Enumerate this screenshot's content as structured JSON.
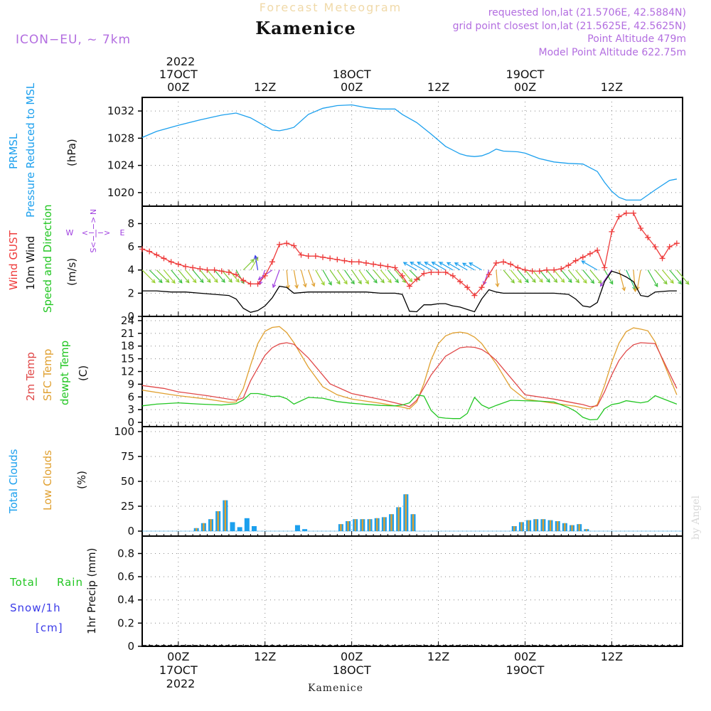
{
  "header": {
    "forecast_title": "Forecast Meteogram",
    "location": "Kamenice",
    "model": "ICON−EU, ~ 7km",
    "requested": "requested lon,lat (21.5706E, 42.5884N)",
    "gridpoint": "grid point closest lon,lat (21.5625E, 42.5625N)",
    "point_alt": "Point Altitude 479m",
    "model_alt": "Model Point Altitude 622.75m"
  },
  "footer": {
    "location": "Kamenice",
    "watermark": "by Angel"
  },
  "time_axis": {
    "top_year": "2022",
    "bottom_year": "2022",
    "labels": [
      {
        "h": 0,
        "top": "00Z",
        "date": "17OCT"
      },
      {
        "h": 12,
        "top": "12Z",
        "date": ""
      },
      {
        "h": 24,
        "top": "00Z",
        "date": "18OCT"
      },
      {
        "h": 36,
        "top": "12Z",
        "date": ""
      },
      {
        "h": 48,
        "top": "00Z",
        "date": "19OCT"
      },
      {
        "h": 60,
        "top": "12Z",
        "date": ""
      }
    ]
  },
  "colors": {
    "pressure": "#1ca0ee",
    "gust": "#ee3a3a",
    "wind": "#000000",
    "t2m": "#e04848",
    "sfc": "#e0a030",
    "dewpt": "#22c622",
    "total_clouds": "#1ca0ee",
    "low_clouds": "#e0a030",
    "rain": "#22c622",
    "snow": "#3a3ae8",
    "direction": "#a040e0"
  },
  "panels": {
    "pressure": {
      "label_line1": "PRMSL",
      "label_line2": "Pressure Reduced to MSL",
      "unit": "(hPa)",
      "ticks": [
        "1020",
        "1024",
        "1028",
        "1032"
      ]
    },
    "wind": {
      "label_gust": "Wind GUST",
      "label_wind": "10m Wind",
      "label_dir": "Speed and Direction",
      "unit": "(m/s)",
      "ticks": [
        "0",
        "2",
        "4",
        "6",
        "8"
      ],
      "compass": {
        "n": "N",
        "s": "S",
        "w": "W",
        "e": "E",
        "arrows": "<−|−>"
      }
    },
    "temp": {
      "label_t2m": "2m Temp",
      "label_sfc": "SFC Temp",
      "label_dewpt": "dewpt Temp",
      "unit": "(C)",
      "ticks": [
        "0",
        "3",
        "6",
        "9",
        "12",
        "15",
        "18",
        "21",
        "24"
      ]
    },
    "clouds": {
      "label_total": "Total Clouds",
      "label_low": "Low Clouds",
      "unit": "(%)",
      "ticks": [
        "0",
        "25",
        "50",
        "75",
        "100"
      ]
    },
    "precip": {
      "label_rain1": "Total",
      "label_rain2": "Rain",
      "label_snow1": "Snow/1h",
      "label_snow2": "[cm]",
      "ylabel": "1hr Precip (mm)",
      "ticks": [
        "0",
        "0.2",
        "0.4",
        "0.6",
        "0.8"
      ]
    }
  },
  "chart_data": {
    "type": "line",
    "x_units": "hours since 17OCT2022 00Z",
    "pressure": {
      "name": "PRMSL",
      "ylim": [
        1018,
        1034
      ],
      "x": [
        -5,
        -3,
        0,
        3,
        6,
        8,
        10,
        12,
        13,
        14,
        15,
        16,
        18,
        20,
        22,
        24,
        26,
        28,
        30,
        31,
        33,
        35,
        37,
        39,
        40,
        41,
        42,
        43,
        44,
        45,
        47,
        48,
        50,
        52,
        54,
        56,
        58,
        59,
        60,
        61,
        62,
        64,
        66,
        68,
        69
      ],
      "y": [
        1028.1,
        1029.0,
        1029.9,
        1030.7,
        1031.4,
        1031.7,
        1031.0,
        1029.8,
        1029.2,
        1029.1,
        1029.3,
        1029.6,
        1031.5,
        1032.4,
        1032.8,
        1032.9,
        1032.5,
        1032.3,
        1032.3,
        1031.5,
        1030.3,
        1028.6,
        1026.8,
        1025.7,
        1025.4,
        1025.3,
        1025.4,
        1025.8,
        1026.4,
        1026.1,
        1026.0,
        1025.8,
        1025.0,
        1024.5,
        1024.3,
        1024.2,
        1023.1,
        1021.5,
        1020.2,
        1019.3,
        1018.9,
        1018.9,
        1020.4,
        1021.8,
        1022.0
      ]
    },
    "gust": {
      "name": "Wind GUST",
      "ylim": [
        0,
        9.5
      ],
      "x": [
        -5,
        -4,
        -3,
        -2,
        -1,
        0,
        1,
        2,
        3,
        4,
        5,
        6,
        7,
        8,
        9,
        10,
        11,
        12,
        13,
        14,
        15,
        16,
        17,
        18,
        19,
        20,
        21,
        22,
        23,
        24,
        25,
        26,
        27,
        28,
        29,
        30,
        31,
        32,
        33,
        34,
        35,
        36,
        37,
        38,
        39,
        40,
        41,
        42,
        43,
        44,
        45,
        46,
        47,
        48,
        49,
        50,
        51,
        52,
        53,
        54,
        55,
        56,
        57,
        58,
        59,
        60,
        61,
        62,
        63,
        64,
        65,
        66,
        67,
        68,
        69
      ],
      "y": [
        5.8,
        5.6,
        5.3,
        5.0,
        4.7,
        4.5,
        4.3,
        4.2,
        4.1,
        4.0,
        4.0,
        3.9,
        3.8,
        3.6,
        3.1,
        2.8,
        2.8,
        3.5,
        4.7,
        6.2,
        6.3,
        6.1,
        5.3,
        5.2,
        5.2,
        5.1,
        5.0,
        4.9,
        4.8,
        4.7,
        4.7,
        4.6,
        4.5,
        4.4,
        4.3,
        4.2,
        3.5,
        2.6,
        3.2,
        3.7,
        3.8,
        3.8,
        3.8,
        3.5,
        3.0,
        2.5,
        1.8,
        2.5,
        3.6,
        4.6,
        4.7,
        4.5,
        4.2,
        4.0,
        3.9,
        3.9,
        4.0,
        4.0,
        4.1,
        4.4,
        4.8,
        5.1,
        5.4,
        5.7,
        4.2,
        7.3,
        8.6,
        8.9,
        8.9,
        7.6,
        6.8,
        6.0,
        5.0,
        6.0,
        6.3
      ]
    },
    "wind": {
      "name": "10m Wind",
      "ylim": [
        0,
        9.5
      ],
      "x": [
        -5,
        -3,
        -1,
        1,
        3,
        5,
        7,
        8,
        9,
        10,
        11,
        12,
        13,
        14,
        15,
        16,
        18,
        20,
        22,
        24,
        26,
        28,
        30,
        31,
        32,
        33,
        34,
        35,
        36,
        37,
        38,
        39,
        40,
        41,
        42,
        43,
        44,
        45,
        46,
        48,
        50,
        52,
        54,
        55,
        56,
        57,
        58,
        59,
        60,
        61,
        62,
        63,
        64,
        65,
        66,
        68,
        69
      ],
      "y": [
        2.2,
        2.2,
        2.1,
        2.1,
        2.0,
        1.9,
        1.8,
        1.5,
        0.7,
        0.35,
        0.5,
        0.9,
        1.6,
        2.6,
        2.5,
        2.0,
        2.1,
        2.1,
        2.1,
        2.1,
        2.1,
        2.0,
        2.0,
        1.9,
        0.45,
        0.4,
        1.0,
        1.0,
        1.1,
        1.1,
        0.9,
        0.8,
        0.6,
        0.4,
        1.5,
        2.3,
        2.1,
        2.0,
        2.0,
        2.0,
        2.0,
        2.0,
        1.9,
        1.5,
        0.9,
        0.8,
        1.2,
        3.0,
        3.9,
        3.7,
        3.4,
        3.0,
        1.8,
        1.7,
        2.1,
        2.2,
        2.2
      ]
    },
    "temp_2m": {
      "name": "2m Temp",
      "ylim": [
        -1,
        25
      ],
      "x": [
        -5,
        -2,
        0,
        4,
        8,
        9,
        10,
        12,
        13,
        14,
        15,
        16,
        18,
        21,
        24,
        28,
        31,
        32,
        33,
        35,
        37,
        39,
        40,
        41,
        42,
        43,
        44,
        48,
        52,
        55,
        56,
        57,
        58,
        59,
        60,
        61,
        62,
        63,
        64,
        66,
        69
      ],
      "y": [
        8.7,
        8.0,
        7.2,
        6.3,
        5.2,
        5.8,
        9.8,
        15.8,
        17.6,
        18.5,
        18.8,
        18.4,
        15.2,
        9.1,
        6.8,
        5.4,
        4.2,
        3.7,
        5.2,
        11.2,
        15.6,
        17.6,
        17.8,
        17.7,
        17.2,
        16.1,
        14.6,
        6.5,
        5.5,
        4.5,
        4.2,
        3.7,
        3.9,
        7.2,
        11.2,
        14.6,
        16.8,
        18.3,
        18.8,
        18.6,
        8.0
      ]
    },
    "temp_sfc": {
      "name": "SFC Temp",
      "ylim": [
        -1,
        25
      ],
      "x": [
        -5,
        -2,
        0,
        4,
        7,
        8,
        9,
        10,
        11,
        12,
        13,
        14,
        15,
        16,
        18,
        20,
        22,
        24,
        28,
        31,
        32,
        33,
        34,
        35,
        36,
        37,
        38,
        39,
        40,
        41,
        42,
        43,
        44,
        46,
        48,
        52,
        55,
        56,
        57,
        58,
        59,
        60,
        61,
        62,
        63,
        64,
        65,
        66,
        69
      ],
      "y": [
        7.6,
        6.8,
        6.3,
        5.5,
        4.7,
        4.8,
        8.0,
        13.5,
        18.6,
        21.5,
        22.4,
        22.6,
        21.2,
        18.8,
        13.0,
        8.4,
        6.5,
        5.5,
        4.5,
        3.6,
        3.2,
        4.8,
        9.2,
        14.8,
        18.6,
        20.4,
        21.1,
        21.3,
        21.0,
        20.1,
        18.6,
        16.2,
        13.8,
        8.2,
        5.5,
        4.5,
        3.8,
        3.4,
        3.2,
        4.2,
        8.7,
        14.2,
        18.7,
        21.4,
        22.3,
        22.0,
        21.6,
        19.0,
        6.5
      ]
    },
    "dewpt": {
      "name": "dewpt Temp",
      "ylim": [
        -1,
        25
      ],
      "x": [
        -5,
        -3,
        0,
        3,
        6,
        8,
        9,
        10,
        11,
        12,
        13,
        14,
        15,
        16,
        18,
        20,
        22,
        24,
        28,
        30,
        31,
        32,
        33,
        34,
        35,
        36,
        37,
        38,
        39,
        40,
        41,
        42,
        43,
        44,
        46,
        48,
        50,
        52,
        54,
        55,
        56,
        57,
        58,
        59,
        60,
        61,
        62,
        64,
        65,
        66,
        69
      ],
      "y": [
        3.9,
        4.3,
        4.6,
        4.3,
        4.1,
        4.4,
        5.3,
        6.8,
        6.8,
        6.5,
        6.1,
        6.2,
        5.6,
        4.3,
        5.9,
        5.7,
        4.9,
        4.5,
        4.0,
        3.9,
        4.1,
        4.6,
        6.5,
        6.2,
        2.8,
        1.2,
        1.0,
        0.9,
        0.9,
        2.1,
        5.9,
        4.1,
        3.3,
        4.0,
        5.2,
        5.1,
        5.0,
        4.8,
        3.5,
        2.6,
        1.2,
        0.6,
        0.7,
        3.2,
        4.2,
        4.5,
        5.1,
        4.6,
        4.9,
        6.3,
        4.3
      ]
    },
    "clouds": {
      "name": "Total Clouds",
      "ylim": [
        -5,
        105
      ],
      "hours": [
        0,
        1,
        2,
        3,
        4,
        5,
        6,
        7,
        8,
        9,
        10,
        11,
        12,
        13,
        14,
        15,
        16,
        17,
        18,
        19,
        20,
        21,
        22,
        23,
        24,
        25,
        26,
        27,
        28,
        29,
        30,
        31,
        32,
        33,
        34,
        35,
        36,
        37,
        38,
        39,
        40,
        41,
        42,
        43,
        44,
        45,
        46,
        47,
        48,
        49,
        50,
        51,
        52,
        53,
        54,
        55,
        56,
        57,
        58,
        59,
        60,
        61,
        62,
        63,
        64,
        65,
        66,
        67,
        68,
        69
      ],
      "total": [
        0,
        0,
        3,
        8,
        12,
        20,
        31,
        9,
        4,
        13,
        5,
        0,
        0,
        0,
        0,
        0,
        6,
        2,
        0,
        0,
        0,
        0,
        7,
        10,
        12,
        12,
        12,
        13,
        14,
        17,
        24,
        37,
        17,
        0,
        0,
        0,
        0,
        0,
        0,
        0,
        0,
        0,
        0,
        0,
        0,
        0,
        5,
        9,
        11,
        12,
        12,
        11,
        10,
        8,
        6,
        7,
        2,
        0,
        0,
        0,
        0,
        0,
        0,
        0,
        0,
        0,
        0,
        0,
        0,
        0
      ],
      "low": [
        0,
        0,
        3,
        8,
        12,
        20,
        31,
        0,
        0,
        0,
        0,
        0,
        0,
        0,
        0,
        0,
        0,
        0,
        0,
        0,
        0,
        0,
        7,
        10,
        12,
        12,
        12,
        13,
        14,
        17,
        24,
        37,
        17,
        0,
        0,
        0,
        0,
        0,
        0,
        0,
        0,
        0,
        0,
        0,
        0,
        0,
        5,
        9,
        11,
        12,
        12,
        11,
        10,
        8,
        6,
        7,
        2,
        0,
        0,
        0,
        0,
        0,
        0,
        0,
        0,
        0,
        0,
        0,
        0,
        0
      ]
    },
    "precip": {
      "name": "1hr Precip (mm)",
      "ylim": [
        0,
        0.95
      ],
      "rain_total": [
        0,
        0,
        0
      ],
      "snow": [
        0,
        0,
        0
      ]
    },
    "wind_barbs": {
      "hours": [
        -5,
        -4,
        -3,
        -2,
        -1,
        0,
        1,
        2,
        3,
        4,
        5,
        6,
        7,
        8,
        9,
        10,
        11,
        12,
        13,
        14,
        15,
        16,
        17,
        18,
        19,
        20,
        21,
        22,
        23,
        24,
        25,
        26,
        27,
        28,
        29,
        30,
        31,
        32,
        33,
        34,
        35,
        36,
        37,
        38,
        39,
        40,
        41,
        42,
        43,
        44,
        45,
        46,
        47,
        48,
        49,
        50,
        51,
        52,
        53,
        54,
        55,
        56,
        57,
        58,
        59,
        60,
        61,
        62,
        63,
        64,
        65,
        66,
        67,
        68,
        69
      ],
      "dir_to_deg": [
        135,
        135,
        135,
        140,
        140,
        140,
        140,
        140,
        140,
        140,
        140,
        140,
        140,
        150,
        45,
        30,
        350,
        200,
        235,
        200,
        175,
        170,
        165,
        160,
        150,
        150,
        145,
        145,
        145,
        145,
        145,
        140,
        140,
        140,
        140,
        140,
        140,
        135,
        300,
        300,
        300,
        300,
        300,
        300,
        300,
        300,
        300,
        300,
        200,
        175,
        140,
        140,
        140,
        140,
        140,
        140,
        140,
        140,
        140,
        140,
        140,
        140,
        140,
        300,
        150,
        215,
        165,
        155,
        175,
        190,
        150,
        140,
        140,
        140,
        140
      ]
    }
  }
}
